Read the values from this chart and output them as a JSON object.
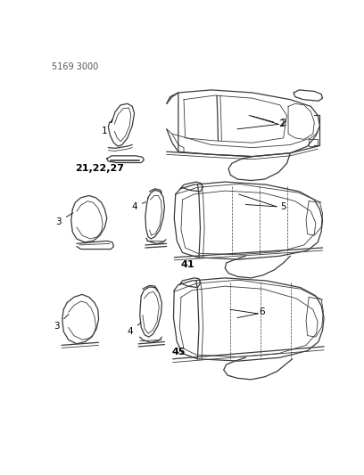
{
  "background_color": "#ffffff",
  "line_color": "#3a3a3a",
  "label_color": "#000000",
  "header": "5169 3000",
  "figsize": [
    4.08,
    5.33
  ],
  "dpi": 100,
  "lw": 0.9
}
